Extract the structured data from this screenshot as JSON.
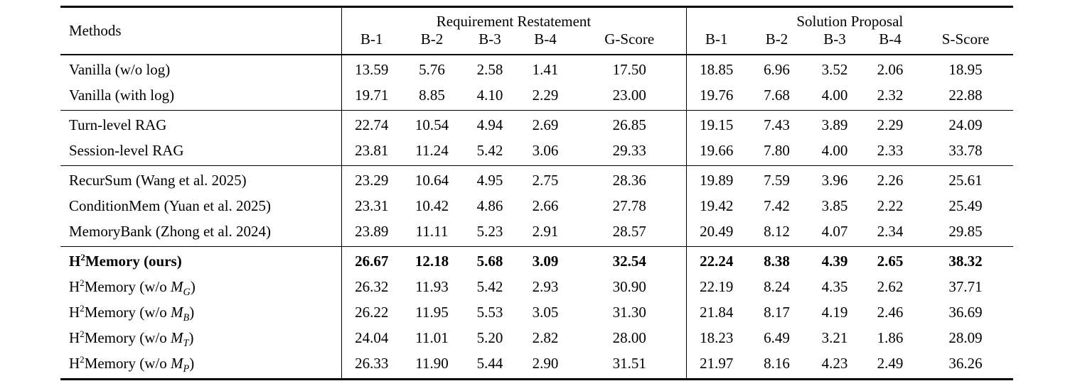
{
  "table": {
    "methods_header": "Methods",
    "col_groups": [
      {
        "title": "Requirement Restatement",
        "cols": [
          "B-1",
          "B-2",
          "B-3",
          "B-4",
          "G-Score"
        ]
      },
      {
        "title": "Solution Proposal",
        "cols": [
          "B-1",
          "B-2",
          "B-3",
          "B-4",
          "S-Score"
        ]
      }
    ],
    "groups": [
      {
        "rows": [
          {
            "method": "Vanilla (w/o log)",
            "values": [
              "13.59",
              "5.76",
              "2.58",
              "1.41",
              "17.50",
              "18.85",
              "6.96",
              "3.52",
              "2.06",
              "18.95"
            ]
          },
          {
            "method": "Vanilla (with log)",
            "values": [
              "19.71",
              "8.85",
              "4.10",
              "2.29",
              "23.00",
              "19.76",
              "7.68",
              "4.00",
              "2.32",
              "22.88"
            ]
          }
        ]
      },
      {
        "rows": [
          {
            "method": "Turn-level RAG",
            "values": [
              "22.74",
              "10.54",
              "4.94",
              "2.69",
              "26.85",
              "19.15",
              "7.43",
              "3.89",
              "2.29",
              "24.09"
            ]
          },
          {
            "method": "Session-level RAG",
            "values": [
              "23.81",
              "11.24",
              "5.42",
              "3.06",
              "29.33",
              "19.66",
              "7.80",
              "4.00",
              "2.33",
              "33.78"
            ]
          }
        ]
      },
      {
        "rows": [
          {
            "method": "RecurSum (Wang et al. 2025)",
            "values": [
              "23.29",
              "10.64",
              "4.95",
              "2.75",
              "28.36",
              "19.89",
              "7.59",
              "3.96",
              "2.26",
              "25.61"
            ]
          },
          {
            "method": "ConditionMem (Yuan et al. 2025)",
            "values": [
              "23.31",
              "10.42",
              "4.86",
              "2.66",
              "27.78",
              "19.42",
              "7.42",
              "3.85",
              "2.22",
              "25.49"
            ]
          },
          {
            "method": "MemoryBank (Zhong et al. 2024)",
            "values": [
              "23.89",
              "11.11",
              "5.23",
              "2.91",
              "28.57",
              "20.49",
              "8.12",
              "4.07",
              "2.34",
              "29.85"
            ]
          }
        ]
      },
      {
        "rows": [
          {
            "method": "H^2Memory (ours)",
            "bold": true,
            "values": [
              "26.67",
              "12.18",
              "5.68",
              "3.09",
              "32.54",
              "22.24",
              "8.38",
              "4.39",
              "2.65",
              "38.32"
            ]
          },
          {
            "method": "H^2Memory (w/o ~M_G)",
            "values": [
              "26.32",
              "11.93",
              "5.42",
              "2.93",
              "30.90",
              "22.19",
              "8.24",
              "4.35",
              "2.62",
              "37.71"
            ]
          },
          {
            "method": "H^2Memory (w/o ~M_B)",
            "values": [
              "26.22",
              "11.95",
              "5.53",
              "3.05",
              "31.30",
              "21.84",
              "8.17",
              "4.19",
              "2.46",
              "36.69"
            ]
          },
          {
            "method": "H^2Memory (w/o ~M_T)",
            "values": [
              "24.04",
              "11.01",
              "5.20",
              "2.82",
              "28.00",
              "18.23",
              "6.49",
              "3.21",
              "1.86",
              "28.09"
            ]
          },
          {
            "method": "H^2Memory (w/o ~M_P)",
            "values": [
              "26.33",
              "11.90",
              "5.44",
              "2.90",
              "31.51",
              "21.97",
              "8.16",
              "4.23",
              "2.49",
              "36.26"
            ]
          }
        ]
      }
    ]
  }
}
